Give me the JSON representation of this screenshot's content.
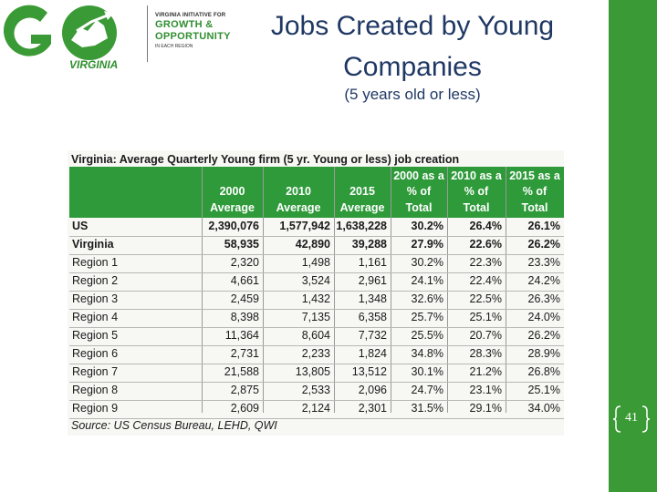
{
  "logo": {
    "word": "GO",
    "state": "VIRGINIA",
    "tagline_top": "VIRGINIA INITIATIVE FOR",
    "tagline_line1": "GROWTH &",
    "tagline_line2": "OPPORTUNITY",
    "tagline_bottom": "IN EACH REGION"
  },
  "title": "Jobs Created by Young Companies",
  "subtitle": "(5 years old or less)",
  "table": {
    "title": "Virginia: Average Quarterly Young firm (5 yr. Young or less) job creation",
    "headers": [
      "",
      "2000\nAverage",
      "2010\nAverage",
      "2015\nAverage",
      "2000 as a\n% of\nTotal",
      "2010 as a\n% of\nTotal",
      "2015 as a\n% of\nTotal"
    ],
    "rows": [
      {
        "label": "US",
        "values": [
          "2,390,076",
          "1,577,942",
          "1,638,228",
          "30.2%",
          "26.4%",
          "26.1%"
        ],
        "bold": true
      },
      {
        "label": "Virginia",
        "values": [
          "58,935",
          "42,890",
          "39,288",
          "27.9%",
          "22.6%",
          "26.2%"
        ],
        "bold": true
      },
      {
        "label": "Region 1",
        "values": [
          "2,320",
          "1,498",
          "1,161",
          "30.2%",
          "22.3%",
          "23.3%"
        ],
        "bold": false
      },
      {
        "label": "Region 2",
        "values": [
          "4,661",
          "3,524",
          "2,961",
          "24.1%",
          "22.4%",
          "24.2%"
        ],
        "bold": false
      },
      {
        "label": "Region 3",
        "values": [
          "2,459",
          "1,432",
          "1,348",
          "32.6%",
          "22.5%",
          "26.3%"
        ],
        "bold": false
      },
      {
        "label": "Region 4",
        "values": [
          "8,398",
          "7,135",
          "6,358",
          "25.7%",
          "25.1%",
          "24.0%"
        ],
        "bold": false
      },
      {
        "label": "Region 5",
        "values": [
          "11,364",
          "8,604",
          "7,732",
          "25.5%",
          "20.7%",
          "26.2%"
        ],
        "bold": false
      },
      {
        "label": "Region 6",
        "values": [
          "2,731",
          "2,233",
          "1,824",
          "34.8%",
          "28.3%",
          "28.9%"
        ],
        "bold": false
      },
      {
        "label": "Region 7",
        "values": [
          "21,588",
          "13,805",
          "13,512",
          "30.1%",
          "21.2%",
          "26.8%"
        ],
        "bold": false
      },
      {
        "label": "Region 8",
        "values": [
          "2,875",
          "2,533",
          "2,096",
          "24.7%",
          "23.1%",
          "25.1%"
        ],
        "bold": false
      },
      {
        "label": "Region 9",
        "values": [
          "2,609",
          "2,124",
          "2,301",
          "31.5%",
          "29.1%",
          "34.0%"
        ],
        "bold": false
      }
    ],
    "source": "Source: US Census Bureau, LEHD, QWI"
  },
  "page_number": "41",
  "colors": {
    "accent_green": "#2e9a3a",
    "band_green": "#3a9a35",
    "title_blue": "#1f3864"
  }
}
